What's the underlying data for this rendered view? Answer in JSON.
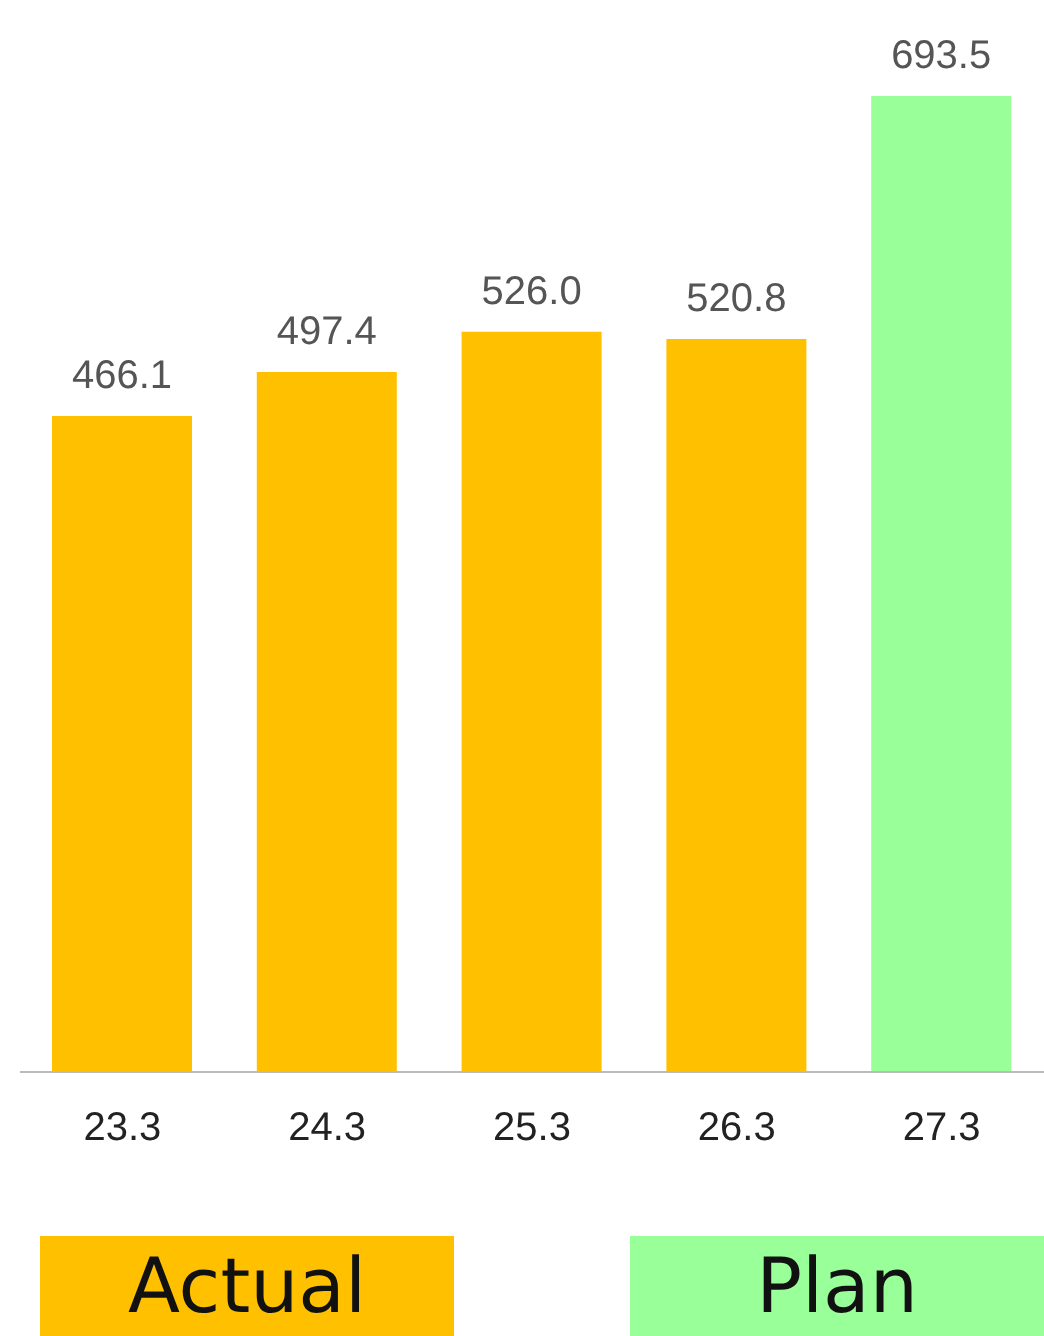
{
  "chart_data": {
    "type": "bar",
    "categories": [
      "23.3",
      "24.3",
      "25.3",
      "26.3",
      "27.3"
    ],
    "series": [
      {
        "name": "Actual",
        "color": "#ffc000",
        "values": [
          466.1,
          497.4,
          526.0,
          520.8,
          null
        ],
        "value_labels": [
          "466.1",
          "497.4",
          "526.0",
          "520.8",
          null
        ]
      },
      {
        "name": "Plan",
        "color": "#99ff99",
        "values": [
          null,
          null,
          null,
          null,
          693.5
        ],
        "value_labels": [
          null,
          null,
          null,
          null,
          "693.5"
        ]
      }
    ],
    "stacked": true,
    "legend": "bottom",
    "grid": false
  }
}
